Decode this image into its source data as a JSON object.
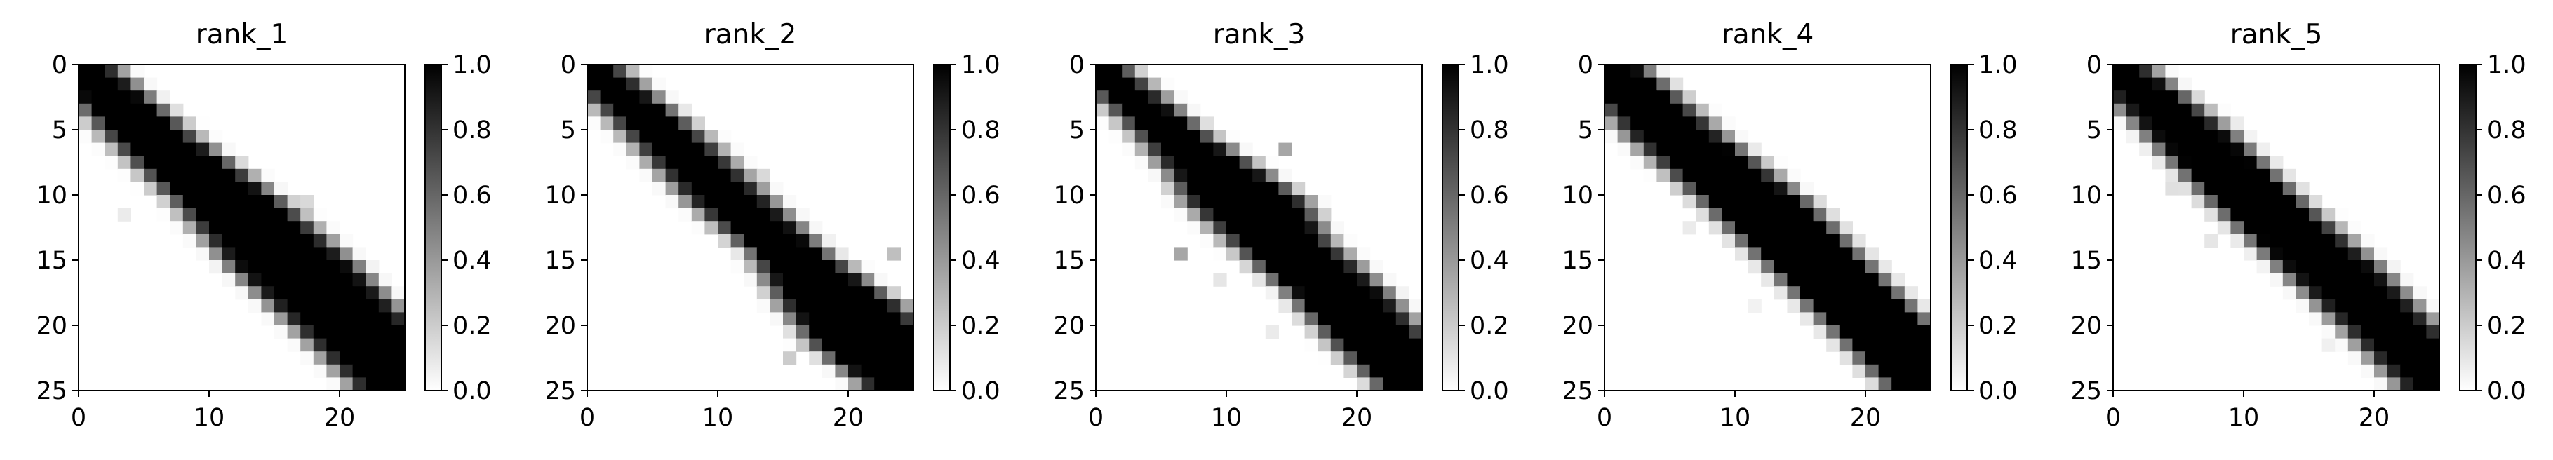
{
  "chart_data": [
    {
      "type": "heatmap",
      "title": "rank_1",
      "size": 25,
      "xlim": [
        0,
        25
      ],
      "ylim": [
        25,
        0
      ],
      "x_ticks": [
        "0",
        "10",
        "20"
      ],
      "y_ticks": [
        "0",
        "5",
        "10",
        "15",
        "20",
        "25"
      ],
      "colorbar": {
        "range": [
          0,
          1
        ],
        "ticks": [
          "0.0",
          "0.2",
          "0.4",
          "0.6",
          "0.8",
          "1.0"
        ],
        "colormap": "gray_r"
      },
      "band": [
        [
          0,
          0,
          2.0,
          0.4
        ],
        [
          5,
          5,
          2.8,
          0.4
        ],
        [
          10,
          11,
          3.6,
          0.4
        ],
        [
          15,
          16,
          4.3,
          0.4
        ],
        [
          20,
          21,
          4.0,
          0.4
        ],
        [
          24,
          24.5,
          3.5,
          0.4
        ]
      ],
      "speckles": [
        [
          10,
          17,
          0.15
        ],
        [
          16,
          14,
          0.1
        ],
        [
          11,
          3,
          0.08
        ],
        [
          8,
          4,
          0.06
        ]
      ]
    },
    {
      "type": "heatmap",
      "title": "rank_2",
      "size": 25,
      "xlim": [
        0,
        25
      ],
      "ylim": [
        25,
        0
      ],
      "x_ticks": [
        "0",
        "10",
        "20"
      ],
      "y_ticks": [
        "0",
        "5",
        "10",
        "15",
        "20",
        "25"
      ],
      "colorbar": {
        "range": [
          0,
          1
        ],
        "ticks": [
          "0.0",
          "0.2",
          "0.4",
          "0.6",
          "0.8",
          "1.0"
        ],
        "colormap": "gray_r"
      },
      "band": [
        [
          0,
          0,
          1.8,
          0.4
        ],
        [
          5,
          5.5,
          2.3,
          0.4
        ],
        [
          10,
          10.5,
          2.6,
          0.4
        ],
        [
          14,
          15,
          2.4,
          0.4
        ],
        [
          18,
          19,
          4.0,
          0.4
        ],
        [
          21,
          21.5,
          4.2,
          0.4
        ],
        [
          24,
          24,
          3.0,
          0.4
        ]
      ],
      "speckles": [
        [
          14,
          23,
          0.25
        ],
        [
          22,
          15,
          0.2
        ],
        [
          8,
          13,
          0.15
        ],
        [
          11,
          9,
          0.1
        ]
      ]
    },
    {
      "type": "heatmap",
      "title": "rank_3",
      "size": 25,
      "xlim": [
        0,
        25
      ],
      "ylim": [
        25,
        0
      ],
      "x_ticks": [
        "0",
        "10",
        "20"
      ],
      "y_ticks": [
        "0",
        "5",
        "10",
        "15",
        "20",
        "25"
      ],
      "colorbar": {
        "range": [
          0,
          1
        ],
        "ticks": [
          "0.0",
          "0.2",
          "0.4",
          "0.6",
          "0.8",
          "1.0"
        ],
        "colormap": "gray_r"
      },
      "band": [
        [
          0,
          0,
          1.6,
          0.4
        ],
        [
          5,
          5.5,
          2.2,
          0.4
        ],
        [
          8,
          9,
          3.2,
          0.4
        ],
        [
          10,
          11,
          4.0,
          0.4
        ],
        [
          13,
          13.5,
          3.3,
          0.4
        ],
        [
          17,
          18,
          3.3,
          0.4
        ],
        [
          21,
          21.5,
          3.2,
          0.4
        ],
        [
          24,
          24,
          2.5,
          0.4
        ]
      ],
      "speckles": [
        [
          6,
          14,
          0.35
        ],
        [
          14,
          6,
          0.35
        ],
        [
          16,
          9,
          0.1
        ],
        [
          20,
          13,
          0.08
        ]
      ]
    },
    {
      "type": "heatmap",
      "title": "rank_4",
      "size": 25,
      "xlim": [
        0,
        25
      ],
      "ylim": [
        25,
        0
      ],
      "x_ticks": [
        "0",
        "10",
        "20"
      ],
      "y_ticks": [
        "0",
        "5",
        "10",
        "15",
        "20",
        "25"
      ],
      "colorbar": {
        "range": [
          0,
          1
        ],
        "ticks": [
          "0.0",
          "0.2",
          "0.4",
          "0.6",
          "0.8",
          "1.0"
        ],
        "colormap": "gray_r"
      },
      "band": [
        [
          0,
          0,
          2.3,
          0.4
        ],
        [
          5,
          5,
          3.1,
          0.4
        ],
        [
          10,
          11,
          3.5,
          0.4
        ],
        [
          15,
          16,
          3.4,
          0.4
        ],
        [
          20,
          21,
          3.4,
          0.4
        ],
        [
          24,
          24.5,
          3.0,
          0.4
        ]
      ],
      "speckles": [
        [
          12,
          6,
          0.08
        ],
        [
          8,
          13,
          0.06
        ],
        [
          18,
          11,
          0.05
        ]
      ]
    },
    {
      "type": "heatmap",
      "title": "rank_5",
      "size": 25,
      "xlim": [
        0,
        25
      ],
      "ylim": [
        25,
        0
      ],
      "x_ticks": [
        "0",
        "10",
        "20"
      ],
      "y_ticks": [
        "0",
        "5",
        "10",
        "15",
        "20",
        "25"
      ],
      "colorbar": {
        "range": [
          0,
          1
        ],
        "ticks": [
          "0.0",
          "0.2",
          "0.4",
          "0.6",
          "0.8",
          "1.0"
        ],
        "colormap": "gray_r"
      },
      "band": [
        [
          0,
          0,
          2.0,
          0.4
        ],
        [
          5,
          5.5,
          2.8,
          0.4
        ],
        [
          10,
          10.5,
          3.0,
          0.4
        ],
        [
          15,
          16,
          3.3,
          0.4
        ],
        [
          20,
          21,
          3.0,
          0.4
        ],
        [
          24,
          24.5,
          2.6,
          0.4
        ]
      ],
      "speckles": [
        [
          9,
          4,
          0.12
        ],
        [
          13,
          7,
          0.1
        ],
        [
          4,
          9,
          0.08
        ],
        [
          21,
          16,
          0.06
        ]
      ]
    }
  ]
}
